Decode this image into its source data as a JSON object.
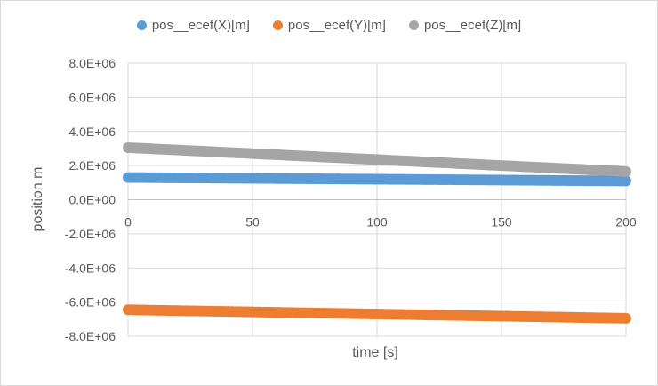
{
  "chart_data": {
    "type": "scatter",
    "title": "",
    "xlabel": "time [s]",
    "ylabel": "position m",
    "xlim": [
      0,
      200
    ],
    "ylim": [
      -8000000,
      8000000
    ],
    "x_ticks": [
      0,
      50,
      100,
      150,
      200
    ],
    "x_tick_labels": [
      "0",
      "50",
      "100",
      "150",
      "200"
    ],
    "y_ticks": [
      8000000,
      6000000,
      4000000,
      2000000,
      0,
      -2000000,
      -4000000,
      -6000000,
      -8000000
    ],
    "y_tick_labels": [
      "8.0E+06",
      "6.0E+06",
      "4.0E+06",
      "2.0E+06",
      "0.0E+00",
      "-2.0E+06",
      "-4.0E+06",
      "-6.0E+06",
      "-8.0E+06"
    ],
    "grid": true,
    "legend_position": "top",
    "series": [
      {
        "name": "pos__ecef(X)[m]",
        "color": "#5b9bd5",
        "x_start": 0,
        "x_end": 200,
        "y_start": 1300000,
        "y_end": 1100000
      },
      {
        "name": "pos__ecef(Y)[m]",
        "color": "#ed7d31",
        "x_start": 0,
        "x_end": 200,
        "y_start": -6450000,
        "y_end": -6950000
      },
      {
        "name": "pos__ecef(Z)[m]",
        "color": "#a5a5a5",
        "x_start": 0,
        "x_end": 200,
        "y_start": 3050000,
        "y_end": 1650000
      }
    ]
  }
}
